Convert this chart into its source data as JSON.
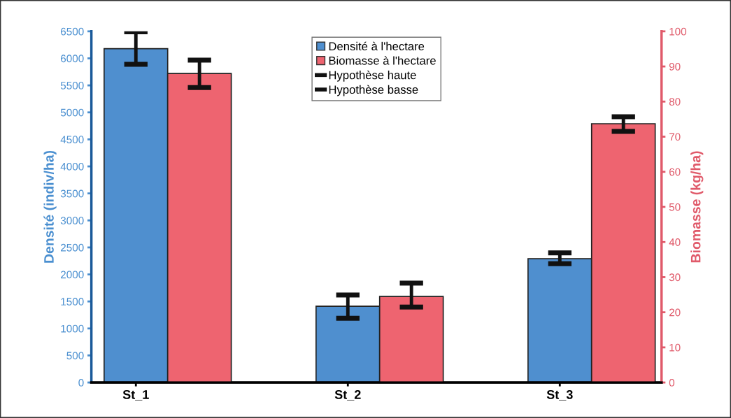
{
  "chart_data": {
    "type": "bar",
    "categories": [
      "St_1",
      "St_2",
      "St_3"
    ],
    "ylabel": "Densité (indiv/ha)",
    "y2label": "Biomasse (kg/ha)",
    "ylim": [
      0,
      6500
    ],
    "yticks": [
      0,
      500,
      1000,
      1500,
      2000,
      2500,
      3000,
      3500,
      4000,
      4500,
      5000,
      5500,
      6000,
      6500
    ],
    "y2lim": [
      0,
      100
    ],
    "y2ticks": [
      0,
      10,
      20,
      30,
      40,
      50,
      60,
      70,
      80,
      90,
      100
    ],
    "grid": false,
    "legend": "top",
    "series": [
      {
        "name": "Densité à l'hectare",
        "axis": "y",
        "color": "#4f8fcf",
        "values": [
          6180,
          1410,
          2290
        ],
        "errors": [
          [
            5890,
            6490
          ],
          [
            1190,
            1620
          ],
          [
            2200,
            2400
          ]
        ]
      },
      {
        "name": "Biomasse à l'hectare",
        "axis": "y2",
        "color": "#ee6470",
        "values": [
          88,
          24.5,
          73.7
        ],
        "errors": [
          [
            84,
            91.8
          ],
          [
            21.5,
            28.3
          ],
          [
            71.5,
            75.7
          ]
        ]
      },
      {
        "name": "Hypothèse haute",
        "type": "line",
        "color": "#111111",
        "values": [
          null,
          null,
          null
        ]
      },
      {
        "name": "Hypothèse basse",
        "type": "line",
        "color": "#111111",
        "values": [
          null,
          null,
          null
        ]
      }
    ]
  }
}
